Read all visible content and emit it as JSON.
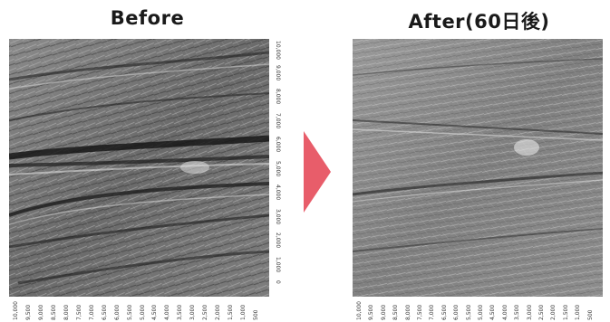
{
  "titles": {
    "before": "Before",
    "after": "After(60日後)"
  },
  "before": {
    "x_ticks": [
      "10,000",
      "9,500",
      "9,000",
      "8,500",
      "8,000",
      "7,500",
      "7,000",
      "6,500",
      "6,000",
      "5,500",
      "5,000",
      "4,500",
      "4,000",
      "3,500",
      "3,000",
      "2,500",
      "2,000",
      "1,500",
      "1,000",
      "500"
    ],
    "y_ticks": [
      "10,000",
      "9,000",
      "8,000",
      "7,000",
      "6,000",
      "5,000",
      "4,000",
      "3,000",
      "2,000",
      "1,000",
      "0"
    ]
  },
  "after": {
    "x_ticks": [
      "10,000",
      "9,500",
      "9,000",
      "8,500",
      "8,000",
      "7,500",
      "7,000",
      "6,500",
      "6,000",
      "5,500",
      "5,000",
      "4,500",
      "4,000",
      "3,500",
      "3,000",
      "2,500",
      "2,000",
      "1,500",
      "1,000",
      "500"
    ]
  },
  "colors": {
    "arrow": "#e85d6a",
    "image_base": "#5a5a5a"
  }
}
